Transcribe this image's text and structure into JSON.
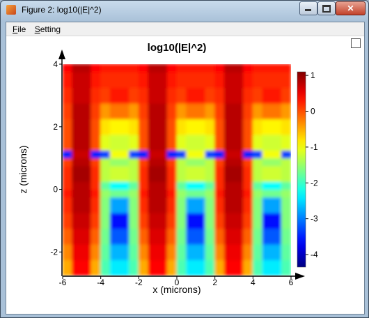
{
  "window": {
    "title": "Figure 2: log10(|E|^2)",
    "menu": [
      "File",
      "Setting"
    ]
  },
  "chart_data": {
    "type": "heatmap",
    "title": "log10(|E|^2)",
    "x_label": "x (microns)",
    "y_label": "z (microns)",
    "x_edges": [
      -6,
      -5.5,
      -5,
      -4.5,
      -4,
      -3.5,
      -3,
      -2.5,
      -2,
      -1.5,
      -1,
      -0.5,
      0,
      0.5,
      1,
      1.5,
      2,
      2.5,
      3,
      3.5,
      4,
      4.5,
      5,
      5.5,
      6
    ],
    "y_edges": [
      -2.75,
      -2.25,
      -1.75,
      -1.25,
      -0.75,
      -0.25,
      0,
      0.25,
      0.75,
      1,
      1.25,
      1.75,
      2.25,
      2.75,
      3.25,
      3.75,
      4
    ],
    "values": [
      [
        -0.5,
        0.4,
        0.4,
        -0.5,
        -1.9,
        -2.4,
        -2.4,
        -1.9,
        -0.5,
        0.4,
        0.4,
        -0.5,
        -1.9,
        -2.4,
        -2.4,
        -1.9,
        -0.5,
        0.4,
        0.4,
        -0.5,
        -1.9,
        -2.4,
        -2.4,
        -1.9
      ],
      [
        -0.3,
        0.5,
        0.5,
        -0.3,
        -1.8,
        -2.7,
        -2.7,
        -1.8,
        -0.3,
        0.5,
        0.5,
        -0.3,
        -1.8,
        -2.7,
        -2.7,
        -1.8,
        -0.3,
        0.5,
        0.5,
        -0.3,
        -1.8,
        -2.7,
        -2.7,
        -1.8
      ],
      [
        -0.1,
        0.6,
        0.6,
        -0.1,
        -1.7,
        -3.2,
        -3.2,
        -1.7,
        -0.1,
        0.6,
        0.6,
        -0.1,
        -1.7,
        -3.2,
        -3.2,
        -1.7,
        -0.1,
        0.6,
        0.6,
        -0.1,
        -1.7,
        -3.2,
        -3.2,
        -1.7
      ],
      [
        0.1,
        0.7,
        0.7,
        0.1,
        -1.6,
        -3.6,
        -3.6,
        -1.6,
        0.1,
        0.7,
        0.7,
        0.1,
        -1.6,
        -3.6,
        -3.6,
        -1.6,
        0.1,
        0.7,
        0.7,
        0.1,
        -1.6,
        -3.6,
        -3.6,
        -1.6
      ],
      [
        0.2,
        0.8,
        0.8,
        0.2,
        -1.6,
        -2.8,
        -2.8,
        -1.6,
        0.2,
        0.8,
        0.8,
        0.2,
        -1.6,
        -2.8,
        -2.8,
        -1.6,
        0.2,
        0.8,
        0.8,
        0.2,
        -1.6,
        -2.8,
        -2.8,
        -1.6
      ],
      [
        0.3,
        0.8,
        0.8,
        0.3,
        -1.5,
        -1.7,
        -1.7,
        -1.5,
        0.3,
        0.8,
        0.8,
        0.3,
        -1.5,
        -1.7,
        -1.7,
        -1.5,
        0.3,
        0.8,
        0.8,
        0.3,
        -1.5,
        -1.7,
        -1.7,
        -1.5
      ],
      [
        0.2,
        0.8,
        0.8,
        0.2,
        -1.8,
        -2.3,
        -2.3,
        -1.8,
        0.2,
        0.8,
        0.8,
        0.2,
        -1.8,
        -2.3,
        -2.3,
        -1.8,
        0.2,
        0.8,
        0.8,
        0.2,
        -1.8,
        -2.3,
        -2.3,
        -1.8
      ],
      [
        0.2,
        0.9,
        0.9,
        0.2,
        -1.3,
        -1.2,
        -1.2,
        -1.3,
        0.2,
        0.9,
        0.9,
        0.2,
        -1.3,
        -1.2,
        -1.2,
        -1.3,
        0.2,
        0.9,
        0.9,
        0.2,
        -1.3,
        -1.2,
        -1.2,
        -1.3
      ],
      [
        0.1,
        0.8,
        0.8,
        0.1,
        -1.3,
        -1.5,
        -1.5,
        -1.3,
        0.1,
        0.8,
        0.8,
        0.1,
        -1.3,
        -1.5,
        -1.5,
        -1.3,
        0.1,
        0.8,
        0.8,
        0.1,
        -1.3,
        -1.5,
        -1.5,
        -1.3
      ],
      [
        -3.5,
        0.7,
        0.7,
        -3.5,
        -3.3,
        -1.0,
        -1.0,
        -3.3,
        -3.5,
        0.7,
        0.7,
        -3.5,
        -3.3,
        -1.0,
        -1.0,
        -3.3,
        -3.5,
        0.7,
        0.7,
        -3.5,
        -3.3,
        -1.0,
        -1.0,
        -3.3
      ],
      [
        0.0,
        0.8,
        0.8,
        0.0,
        -1.1,
        -1.2,
        -1.2,
        -1.1,
        0.0,
        0.8,
        0.8,
        0.0,
        -1.1,
        -1.2,
        -1.2,
        -1.1,
        0.0,
        0.8,
        0.8,
        0.0,
        -1.1,
        -1.2,
        -1.2,
        -1.1
      ],
      [
        0.0,
        0.8,
        0.8,
        0.0,
        -0.8,
        -0.9,
        -0.9,
        -0.8,
        0.0,
        0.8,
        0.8,
        0.0,
        -0.8,
        -0.9,
        -0.9,
        -0.8,
        0.0,
        0.8,
        0.8,
        0.0,
        -0.8,
        -0.9,
        -0.9,
        -0.8
      ],
      [
        0.1,
        0.8,
        0.8,
        0.1,
        -0.4,
        -0.2,
        -0.2,
        -0.4,
        0.1,
        0.8,
        0.8,
        0.1,
        -0.4,
        -0.2,
        -0.2,
        -0.4,
        0.1,
        0.8,
        0.8,
        0.1,
        -0.4,
        -0.2,
        -0.2,
        -0.4
      ],
      [
        0.2,
        0.7,
        0.7,
        0.2,
        0.1,
        0.3,
        0.3,
        0.1,
        0.2,
        0.7,
        0.7,
        0.2,
        0.1,
        0.3,
        0.3,
        0.1,
        0.2,
        0.7,
        0.7,
        0.2,
        0.1,
        0.3,
        0.3,
        0.1
      ],
      [
        0.3,
        0.7,
        0.7,
        0.3,
        0.2,
        0.2,
        0.2,
        0.2,
        0.3,
        0.7,
        0.7,
        0.3,
        0.2,
        0.2,
        0.2,
        0.2,
        0.3,
        0.7,
        0.7,
        0.3,
        0.2,
        0.2,
        0.2,
        0.2
      ],
      [
        0.4,
        0.8,
        0.8,
        0.4,
        0.3,
        0.3,
        0.3,
        0.3,
        0.4,
        0.8,
        0.8,
        0.4,
        0.3,
        0.3,
        0.3,
        0.3,
        0.4,
        0.8,
        0.8,
        0.4,
        0.3,
        0.3,
        0.3,
        0.3
      ]
    ],
    "xlim": [
      -6,
      6
    ],
    "ylim": [
      -2.75,
      4
    ],
    "xticks": [
      -6,
      -4,
      -2,
      0,
      2,
      4,
      6
    ],
    "yticks": [
      -2,
      0,
      2,
      4
    ],
    "colormap": "jet",
    "clim": [
      -4.35,
      1.1
    ],
    "cticks": [
      -4,
      -3,
      -2,
      -1,
      0,
      1
    ]
  }
}
